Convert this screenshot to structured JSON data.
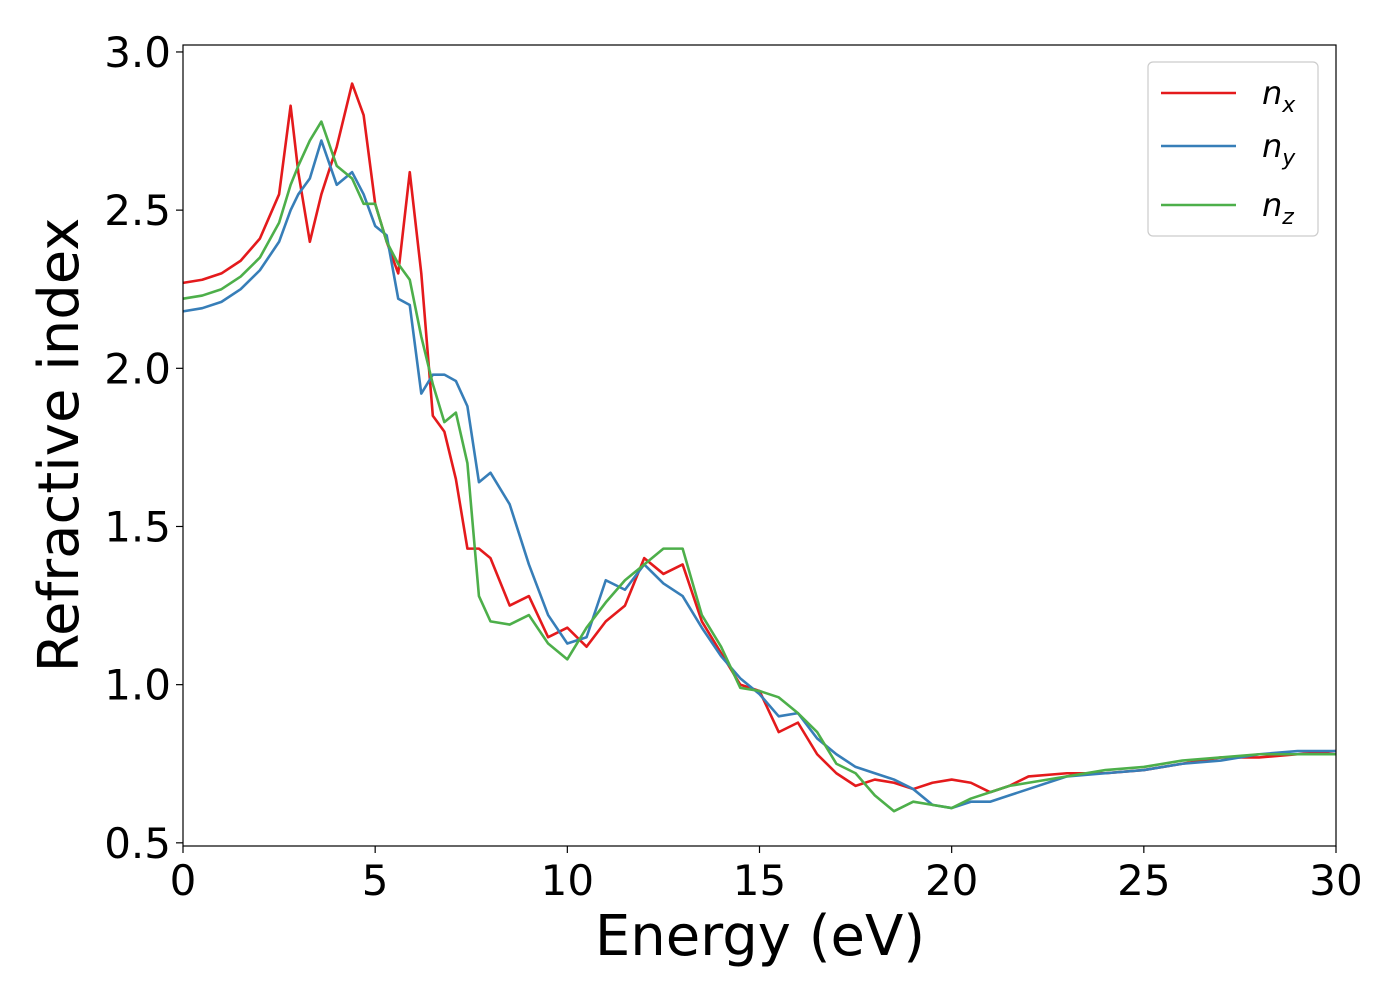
{
  "chart_data": {
    "type": "line",
    "xlabel": "Energy (eV)",
    "ylabel": "Refractive index",
    "x": [
      0,
      0.5,
      1,
      1.5,
      2,
      2.5,
      2.8,
      3.0,
      3.3,
      3.6,
      4.0,
      4.4,
      4.7,
      5.0,
      5.3,
      5.6,
      5.9,
      6.2,
      6.5,
      6.8,
      7.1,
      7.4,
      7.7,
      8.0,
      8.5,
      9.0,
      9.5,
      10,
      10.5,
      11,
      11.5,
      12,
      12.5,
      13,
      13.5,
      14,
      14.5,
      15,
      15.5,
      16,
      16.5,
      17,
      17.5,
      18,
      18.5,
      19,
      19.5,
      20,
      20.5,
      21,
      21.5,
      22,
      23,
      24,
      25,
      26,
      27,
      28,
      29,
      30
    ],
    "series": [
      {
        "name": "nx",
        "color": "#e41a1c",
        "values": [
          2.27,
          2.28,
          2.3,
          2.34,
          2.41,
          2.55,
          2.83,
          2.62,
          2.4,
          2.55,
          2.7,
          2.9,
          2.8,
          2.52,
          2.4,
          2.3,
          2.62,
          2.3,
          1.85,
          1.8,
          1.65,
          1.43,
          1.43,
          1.4,
          1.25,
          1.28,
          1.15,
          1.18,
          1.12,
          1.2,
          1.25,
          1.4,
          1.35,
          1.38,
          1.2,
          1.1,
          1.0,
          0.98,
          0.85,
          0.88,
          0.78,
          0.72,
          0.68,
          0.7,
          0.69,
          0.67,
          0.69,
          0.7,
          0.69,
          0.66,
          0.68,
          0.71,
          0.72,
          0.72,
          0.73,
          0.75,
          0.77,
          0.77,
          0.78,
          0.79
        ]
      },
      {
        "name": "ny",
        "color": "#377eb8",
        "values": [
          2.18,
          2.19,
          2.21,
          2.25,
          2.31,
          2.4,
          2.5,
          2.55,
          2.6,
          2.72,
          2.58,
          2.62,
          2.55,
          2.45,
          2.42,
          2.22,
          2.2,
          1.92,
          1.98,
          1.98,
          1.96,
          1.88,
          1.64,
          1.67,
          1.57,
          1.38,
          1.22,
          1.13,
          1.15,
          1.33,
          1.3,
          1.38,
          1.32,
          1.28,
          1.18,
          1.09,
          1.02,
          0.97,
          0.9,
          0.91,
          0.83,
          0.78,
          0.74,
          0.72,
          0.7,
          0.67,
          0.62,
          0.61,
          0.63,
          0.63,
          0.65,
          0.67,
          0.71,
          0.72,
          0.73,
          0.75,
          0.76,
          0.78,
          0.79,
          0.79
        ]
      },
      {
        "name": "nz",
        "color": "#4daf4a",
        "values": [
          2.22,
          2.23,
          2.25,
          2.29,
          2.35,
          2.46,
          2.58,
          2.64,
          2.72,
          2.78,
          2.64,
          2.6,
          2.52,
          2.52,
          2.4,
          2.33,
          2.28,
          2.1,
          1.95,
          1.83,
          1.86,
          1.7,
          1.28,
          1.2,
          1.19,
          1.22,
          1.13,
          1.08,
          1.18,
          1.26,
          1.33,
          1.38,
          1.43,
          1.43,
          1.22,
          1.12,
          0.99,
          0.98,
          0.96,
          0.91,
          0.85,
          0.75,
          0.72,
          0.65,
          0.6,
          0.63,
          0.62,
          0.61,
          0.64,
          0.66,
          0.68,
          0.69,
          0.71,
          0.73,
          0.74,
          0.76,
          0.77,
          0.78,
          0.78,
          0.78
        ]
      }
    ],
    "xlim": [
      0,
      30
    ],
    "xticks": [
      0,
      5,
      10,
      15,
      20,
      25,
      30
    ],
    "ylim": [
      0.49,
      3.022
    ],
    "yticks": [
      0.5,
      {
        "value": 1,
        "label": "1.0"
      },
      1.5,
      {
        "value": 2,
        "label": "2.0"
      },
      2.5,
      {
        "value": 3,
        "label": "3.0"
      }
    ],
    "grid": false,
    "legend": "upper right"
  }
}
